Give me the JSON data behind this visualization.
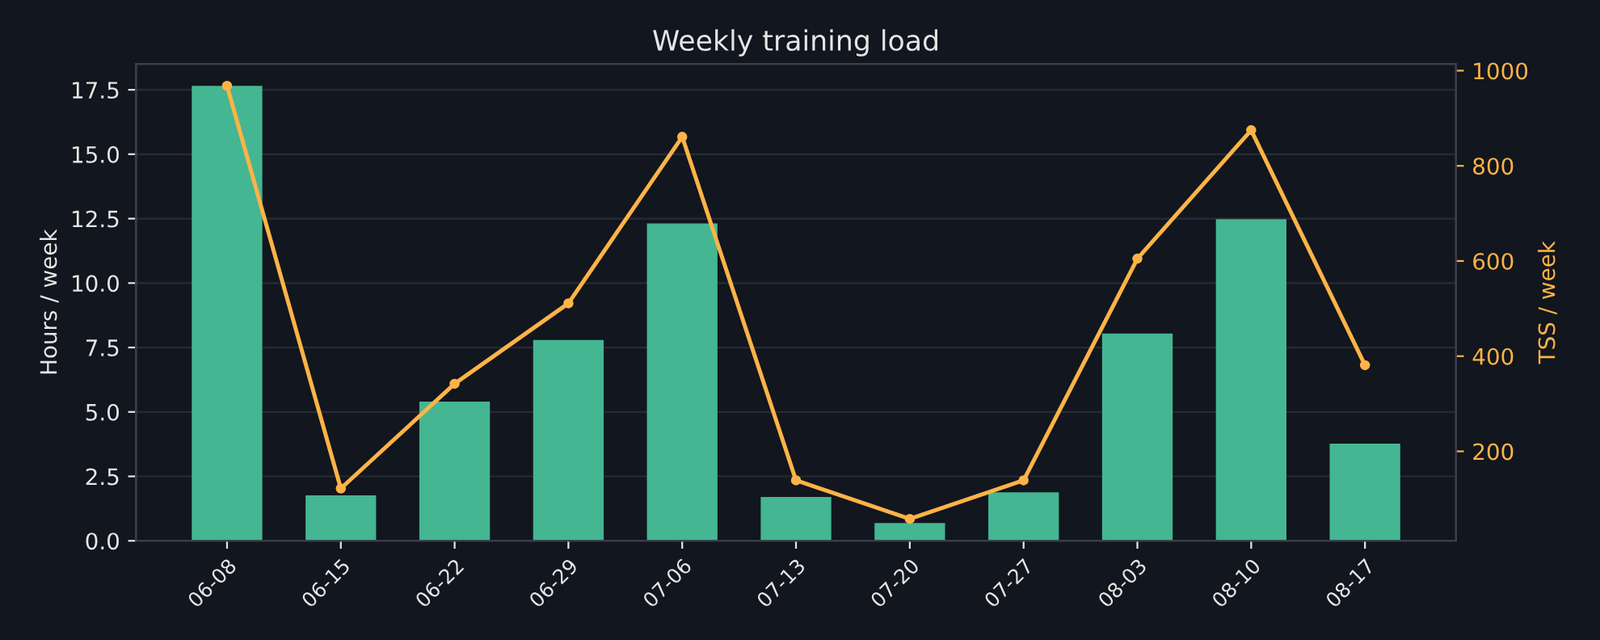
{
  "chart_data": {
    "type": "bar",
    "title": "Weekly training load",
    "ylabel": "Hours / week",
    "y2label": "TSS / week",
    "categories": [
      "06-08",
      "06-15",
      "06-22",
      "06-29",
      "07-06",
      "07-13",
      "07-20",
      "07-27",
      "08-03",
      "08-10",
      "08-17"
    ],
    "series": [
      {
        "color": "#44b692",
        "values": [
          17.65,
          1.76,
          5.4,
          7.79,
          12.31,
          1.7,
          0.69,
          1.88,
          8.04,
          12.48,
          3.77
        ]
      },
      {
        "type": "line",
        "axis": "y2",
        "color": "#ffb347",
        "marker": "circle",
        "values": [
          968,
          122,
          342,
          511,
          861,
          139,
          58,
          139,
          605,
          875,
          381
        ]
      }
    ],
    "ylim": [
      0,
      18.5
    ],
    "yticks": [
      {
        "value": 0,
        "label": "0.0"
      },
      2.5,
      {
        "value": 5,
        "label": "5.0"
      },
      7.5,
      {
        "value": 10,
        "label": "10.0"
      },
      12.5,
      {
        "value": 15,
        "label": "15.0"
      },
      17.5
    ],
    "y2lim": [
      12,
      1014
    ],
    "y2ticks": [
      200,
      400,
      600,
      800,
      1000
    ],
    "grid": "y",
    "legend": false
  }
}
